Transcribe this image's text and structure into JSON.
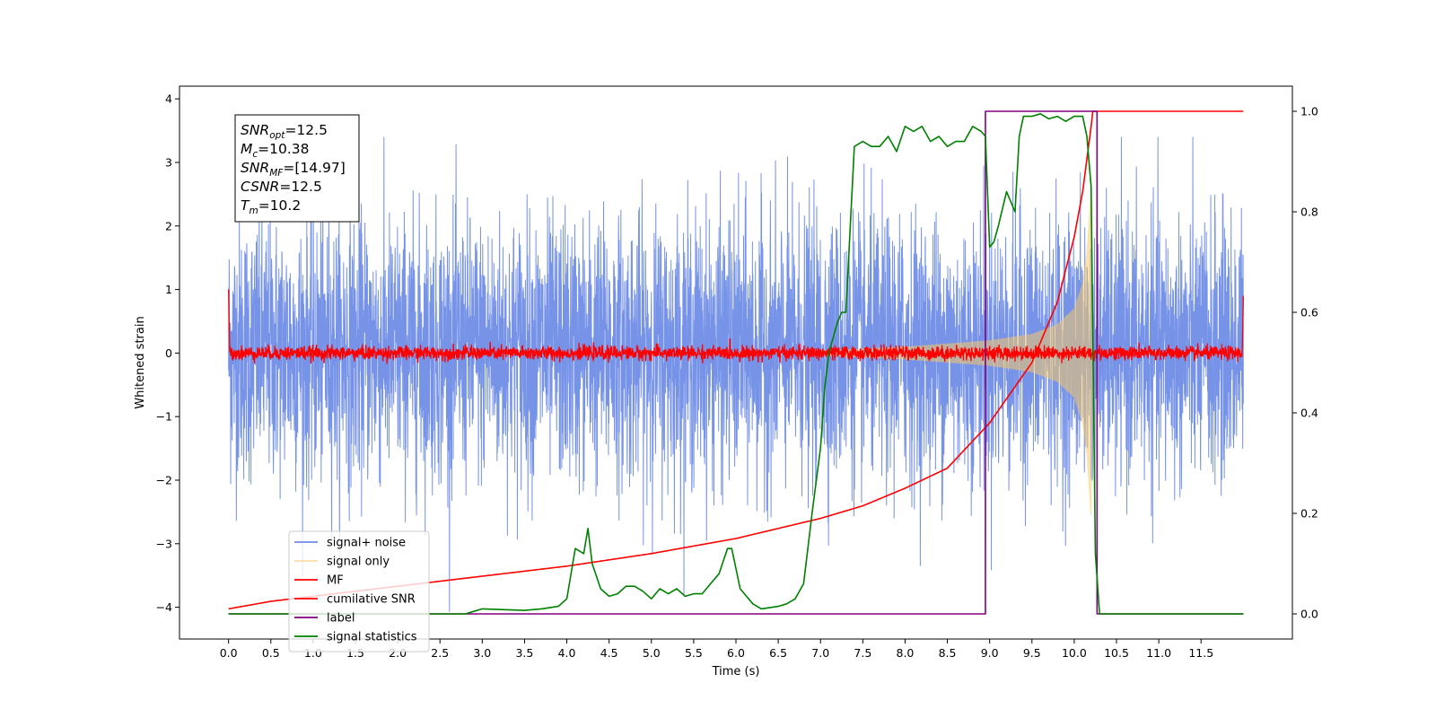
{
  "chart_data": {
    "type": "line",
    "xlabel": "Time (s)",
    "ylabel": "Whitened strain",
    "x_ticks": [
      0.0,
      0.5,
      1.0,
      1.5,
      2.0,
      2.5,
      3.0,
      3.5,
      4.0,
      4.5,
      5.0,
      5.5,
      6.0,
      6.5,
      7.0,
      7.5,
      8.0,
      8.5,
      9.0,
      9.5,
      10.0,
      10.5,
      11.0,
      11.5
    ],
    "x_tick_labels": [
      "0.0",
      "0.5",
      "1.0",
      "1.5",
      "2.0",
      "2.5",
      "3.0",
      "3.5",
      "4.0",
      "4.5",
      "5.0",
      "5.5",
      "6.0",
      "6.5",
      "7.0",
      "7.5",
      "8.0",
      "8.5",
      "9.0",
      "9.5",
      "10.0",
      "10.5",
      "11.0",
      "11.5"
    ],
    "xlim": [
      -0.58,
      12.58
    ],
    "ylim_left": [
      -4.5,
      4.2
    ],
    "y_left_ticks": [
      -4,
      -3,
      -2,
      -1,
      0,
      1,
      2,
      3,
      4
    ],
    "y_left_tick_labels": [
      "−4",
      "−3",
      "−2",
      "−1",
      "0",
      "1",
      "2",
      "3",
      "4"
    ],
    "ylim_right": [
      -0.05,
      1.05
    ],
    "y_right_ticks": [
      0.0,
      0.2,
      0.4,
      0.6,
      0.8,
      1.0
    ],
    "y_right_tick_labels": [
      "0.0",
      "0.2",
      "0.4",
      "0.6",
      "0.8",
      "1.0"
    ],
    "legend_position": "lower-left",
    "grid": false,
    "series": [
      {
        "name": "signal+ noise",
        "axis": "left",
        "color": "#6f8de6",
        "style": "noise",
        "x_range": [
          0.0,
          12.0
        ],
        "typical_amplitude": [
          -2.0,
          2.1
        ],
        "extremes": [
          -4.1,
          3.4
        ]
      },
      {
        "name": "signal only",
        "axis": "left",
        "color": "#f5c86a",
        "style": "chirp",
        "x_range": [
          7.0,
          10.22
        ],
        "envelope": {
          "x": [
            7.0,
            8.0,
            9.0,
            9.5,
            9.8,
            10.0,
            10.1,
            10.15,
            10.2,
            10.22
          ],
          "y": [
            0.04,
            0.1,
            0.2,
            0.3,
            0.45,
            0.7,
            1.1,
            1.6,
            2.6,
            0.0
          ]
        }
      },
      {
        "name": "MF",
        "axis": "left",
        "color": "#ff0000",
        "style": "noise",
        "x_range": [
          0.0,
          12.0
        ],
        "typical_amplitude": [
          -0.12,
          0.12
        ],
        "edge_values": {
          "start": 1.0,
          "end": 0.9
        }
      },
      {
        "name": "cumilative SNR",
        "axis": "right",
        "color": "#ff0000",
        "style": "curve",
        "x": [
          0.0,
          0.5,
          1.0,
          2.0,
          3.0,
          4.0,
          5.0,
          6.0,
          7.0,
          7.5,
          8.0,
          8.5,
          9.0,
          9.5,
          9.8,
          10.0,
          10.1,
          10.2,
          10.22,
          12.0
        ],
        "y": [
          0.01,
          0.025,
          0.035,
          0.055,
          0.075,
          0.095,
          0.12,
          0.15,
          0.19,
          0.215,
          0.25,
          0.29,
          0.38,
          0.5,
          0.62,
          0.75,
          0.84,
          0.97,
          1.0,
          1.0
        ]
      },
      {
        "name": "label",
        "axis": "right",
        "color": "#800080",
        "style": "step",
        "x": [
          0.0,
          8.95,
          8.95,
          10.27,
          10.27,
          12.0
        ],
        "y": [
          0.0,
          0.0,
          1.0,
          1.0,
          0.0,
          0.0
        ]
      },
      {
        "name": "signal statistics",
        "axis": "right",
        "color": "#008000",
        "style": "line",
        "x": [
          0.0,
          2.0,
          2.6,
          2.8,
          2.9,
          3.0,
          3.5,
          3.7,
          3.9,
          4.0,
          4.05,
          4.1,
          4.2,
          4.25,
          4.3,
          4.4,
          4.5,
          4.6,
          4.7,
          4.8,
          4.9,
          5.0,
          5.1,
          5.2,
          5.3,
          5.4,
          5.5,
          5.6,
          5.7,
          5.8,
          5.9,
          5.95,
          6.0,
          6.05,
          6.1,
          6.2,
          6.3,
          6.5,
          6.6,
          6.7,
          6.8,
          6.9,
          7.0,
          7.05,
          7.1,
          7.15,
          7.2,
          7.25,
          7.3,
          7.4,
          7.5,
          7.6,
          7.7,
          7.8,
          7.9,
          8.0,
          8.1,
          8.2,
          8.3,
          8.4,
          8.5,
          8.6,
          8.7,
          8.8,
          8.9,
          8.95,
          9.0,
          9.05,
          9.1,
          9.2,
          9.3,
          9.35,
          9.4,
          9.5,
          9.6,
          9.7,
          9.8,
          9.9,
          10.0,
          10.1,
          10.15,
          10.2,
          10.25,
          10.3,
          10.5,
          12.0
        ],
        "y": [
          0.0,
          0.0,
          0.0,
          0.0,
          0.005,
          0.01,
          0.007,
          0.01,
          0.015,
          0.03,
          0.08,
          0.13,
          0.12,
          0.17,
          0.1,
          0.05,
          0.035,
          0.04,
          0.055,
          0.055,
          0.045,
          0.03,
          0.05,
          0.04,
          0.05,
          0.035,
          0.04,
          0.04,
          0.06,
          0.08,
          0.13,
          0.13,
          0.09,
          0.05,
          0.04,
          0.02,
          0.01,
          0.015,
          0.02,
          0.03,
          0.06,
          0.2,
          0.33,
          0.45,
          0.52,
          0.55,
          0.58,
          0.6,
          0.6,
          0.93,
          0.94,
          0.93,
          0.93,
          0.95,
          0.92,
          0.97,
          0.96,
          0.97,
          0.94,
          0.95,
          0.93,
          0.94,
          0.94,
          0.97,
          0.96,
          0.95,
          0.73,
          0.74,
          0.77,
          0.84,
          0.8,
          0.95,
          0.99,
          0.99,
          0.995,
          0.985,
          0.99,
          0.98,
          0.99,
          0.99,
          0.95,
          0.85,
          0.12,
          0.0,
          0.0,
          0.0
        ]
      }
    ],
    "annotation": {
      "position": "top-left",
      "lines": [
        {
          "base": "SNR",
          "sub": "opt",
          "value": "=12.5"
        },
        {
          "base": "M",
          "sub": "c",
          "value": "=10.38"
        },
        {
          "base": "SNR",
          "sub": "MF",
          "value": "=[14.97]"
        },
        {
          "base": "CSNR",
          "sub": "",
          "value": "=12.5"
        },
        {
          "base": "T",
          "sub": "m",
          "value": "=10.2"
        }
      ]
    }
  }
}
